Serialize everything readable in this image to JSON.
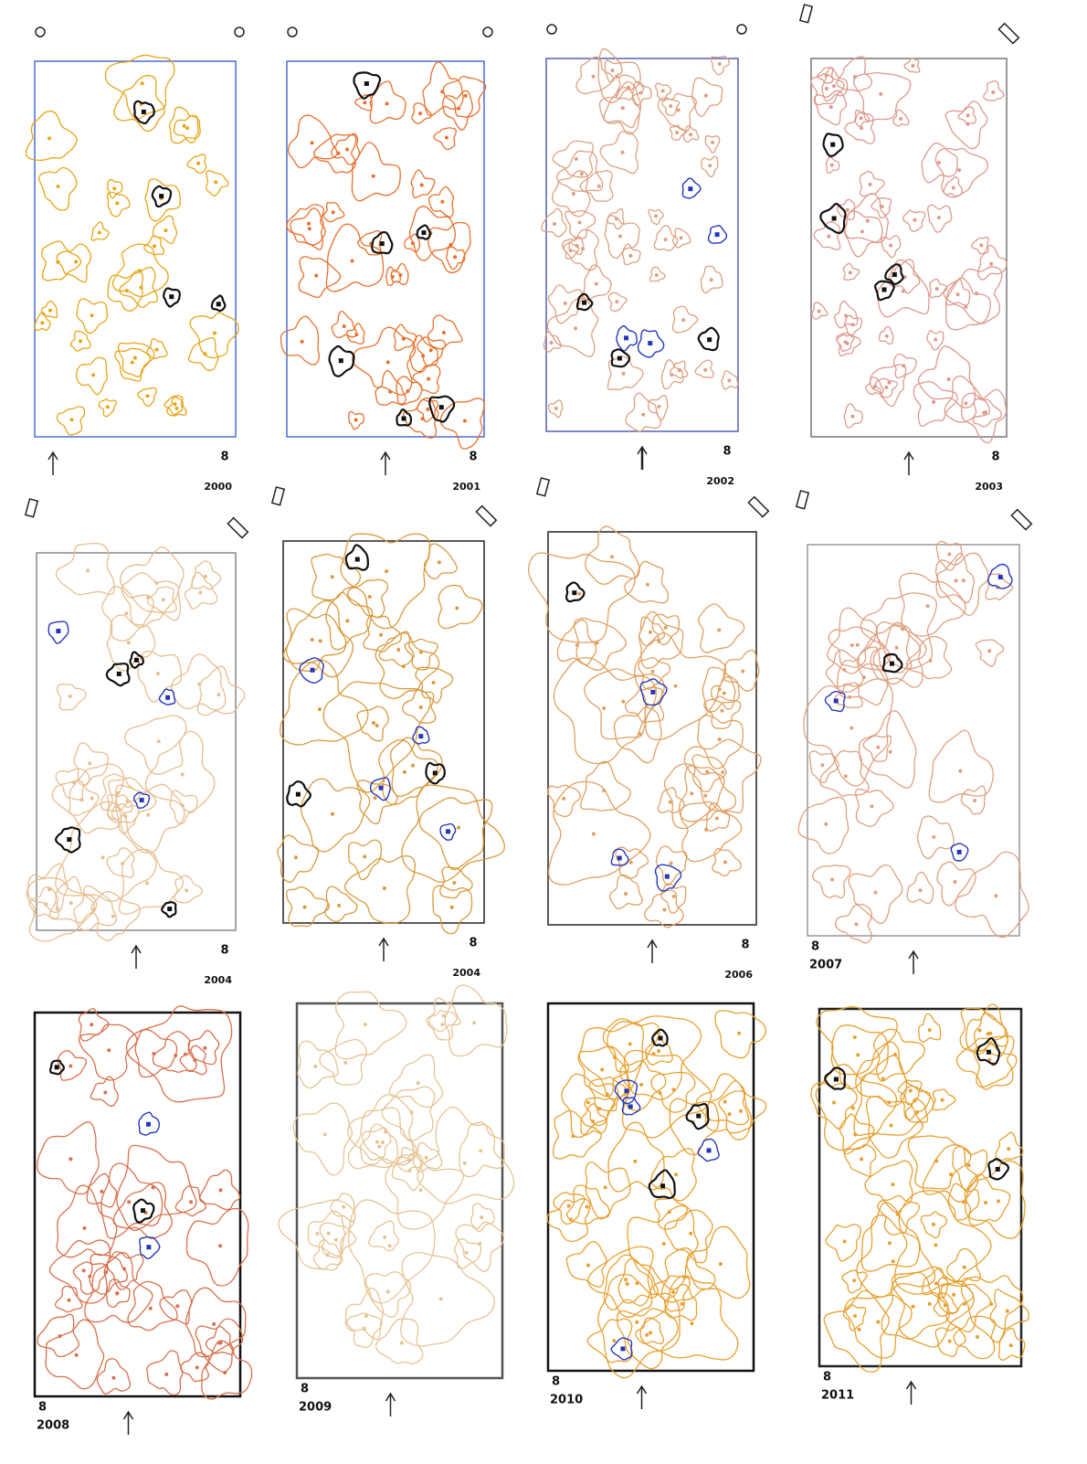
{
  "panels": [
    {
      "year": "2000",
      "scale": "8"
    },
    {
      "year": "2001",
      "scale": "8"
    },
    {
      "year": "2002",
      "scale": "8"
    },
    {
      "year": "2003",
      "scale": "8"
    },
    {
      "year": "2004",
      "scale": "8"
    },
    {
      "year": "2004",
      "scale": "8"
    },
    {
      "year": "2006",
      "scale": "8"
    },
    {
      "year": "2007",
      "scale": "8"
    },
    {
      "year": "2008",
      "scale": "8"
    },
    {
      "year": "2009",
      "scale": "8"
    },
    {
      "year": "2010",
      "scale": "8"
    },
    {
      "year": "2011",
      "scale": "8"
    }
  ]
}
